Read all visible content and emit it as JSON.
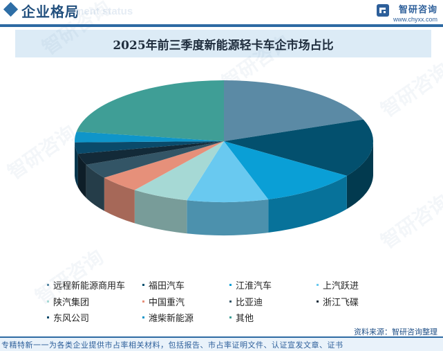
{
  "header": {
    "title": "企业格局",
    "subtitle": "ment status",
    "brand_name": "智研咨询",
    "brand_url": "www.chyxx.com",
    "accent_color": "#2d6aa3"
  },
  "chart_data": {
    "type": "pie",
    "title": "2025年前三季度新能源轻卡车企市场占比",
    "categories": [
      "远程新能源商用车",
      "福田汽车",
      "江淮汽车",
      "上汽跃进",
      "陕汽集团",
      "中国重汽",
      "比亚迪",
      "浙江飞碟",
      "东风公司",
      "潍柴新能源",
      "其他"
    ],
    "values": [
      19.2,
      15.4,
      10.6,
      8.8,
      6.2,
      4.6,
      3.9,
      3.0,
      3.0,
      2.8,
      22.5
    ],
    "colors": [
      "#5b8aa5",
      "#03506e",
      "#0a9fd6",
      "#69c9f0",
      "#a6d9d5",
      "#e6907a",
      "#335566",
      "#132a38",
      "#0a4a6a",
      "#0f95c9",
      "#3f9e96"
    ],
    "legend_position": "bottom",
    "style": "3d"
  },
  "source": "资料来源：智研咨询整理",
  "footer": {
    "text": "专精特新一一为各类企业提供市占率相关材料，包括报告、市占率证明文件、认证宣发文章、证书"
  }
}
